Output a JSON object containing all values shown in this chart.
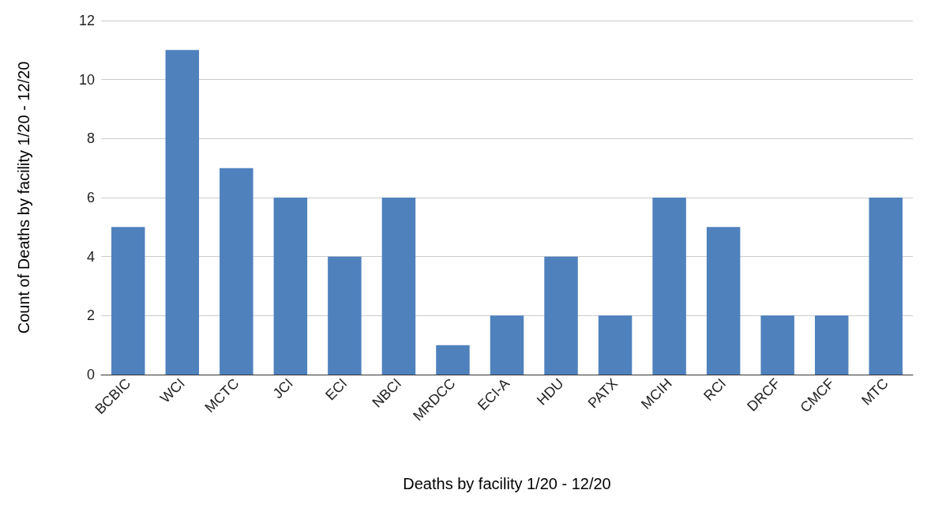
{
  "chart_data": {
    "type": "bar",
    "xlabel": "Deaths by facility 1/20 - 12/20",
    "ylabel": "Count of Deaths by facility 1/20 - 12/20",
    "categories": [
      "BCBIC",
      "WCI",
      "MCTC",
      "JCI",
      "ECI",
      "NBCI",
      "MRDCC",
      "ECI-A",
      "HDU",
      "PATX",
      "MCIH",
      "RCI",
      "DRCF",
      "CMCF",
      "MTC"
    ],
    "values": [
      5,
      11,
      7,
      6,
      4,
      6,
      1,
      2,
      4,
      2,
      6,
      5,
      2,
      2,
      6
    ],
    "color": "#4f81bd",
    "ylim": [
      0,
      12
    ],
    "yticks": [
      0,
      2,
      4,
      6,
      8,
      10,
      12
    ],
    "grid": "y"
  }
}
